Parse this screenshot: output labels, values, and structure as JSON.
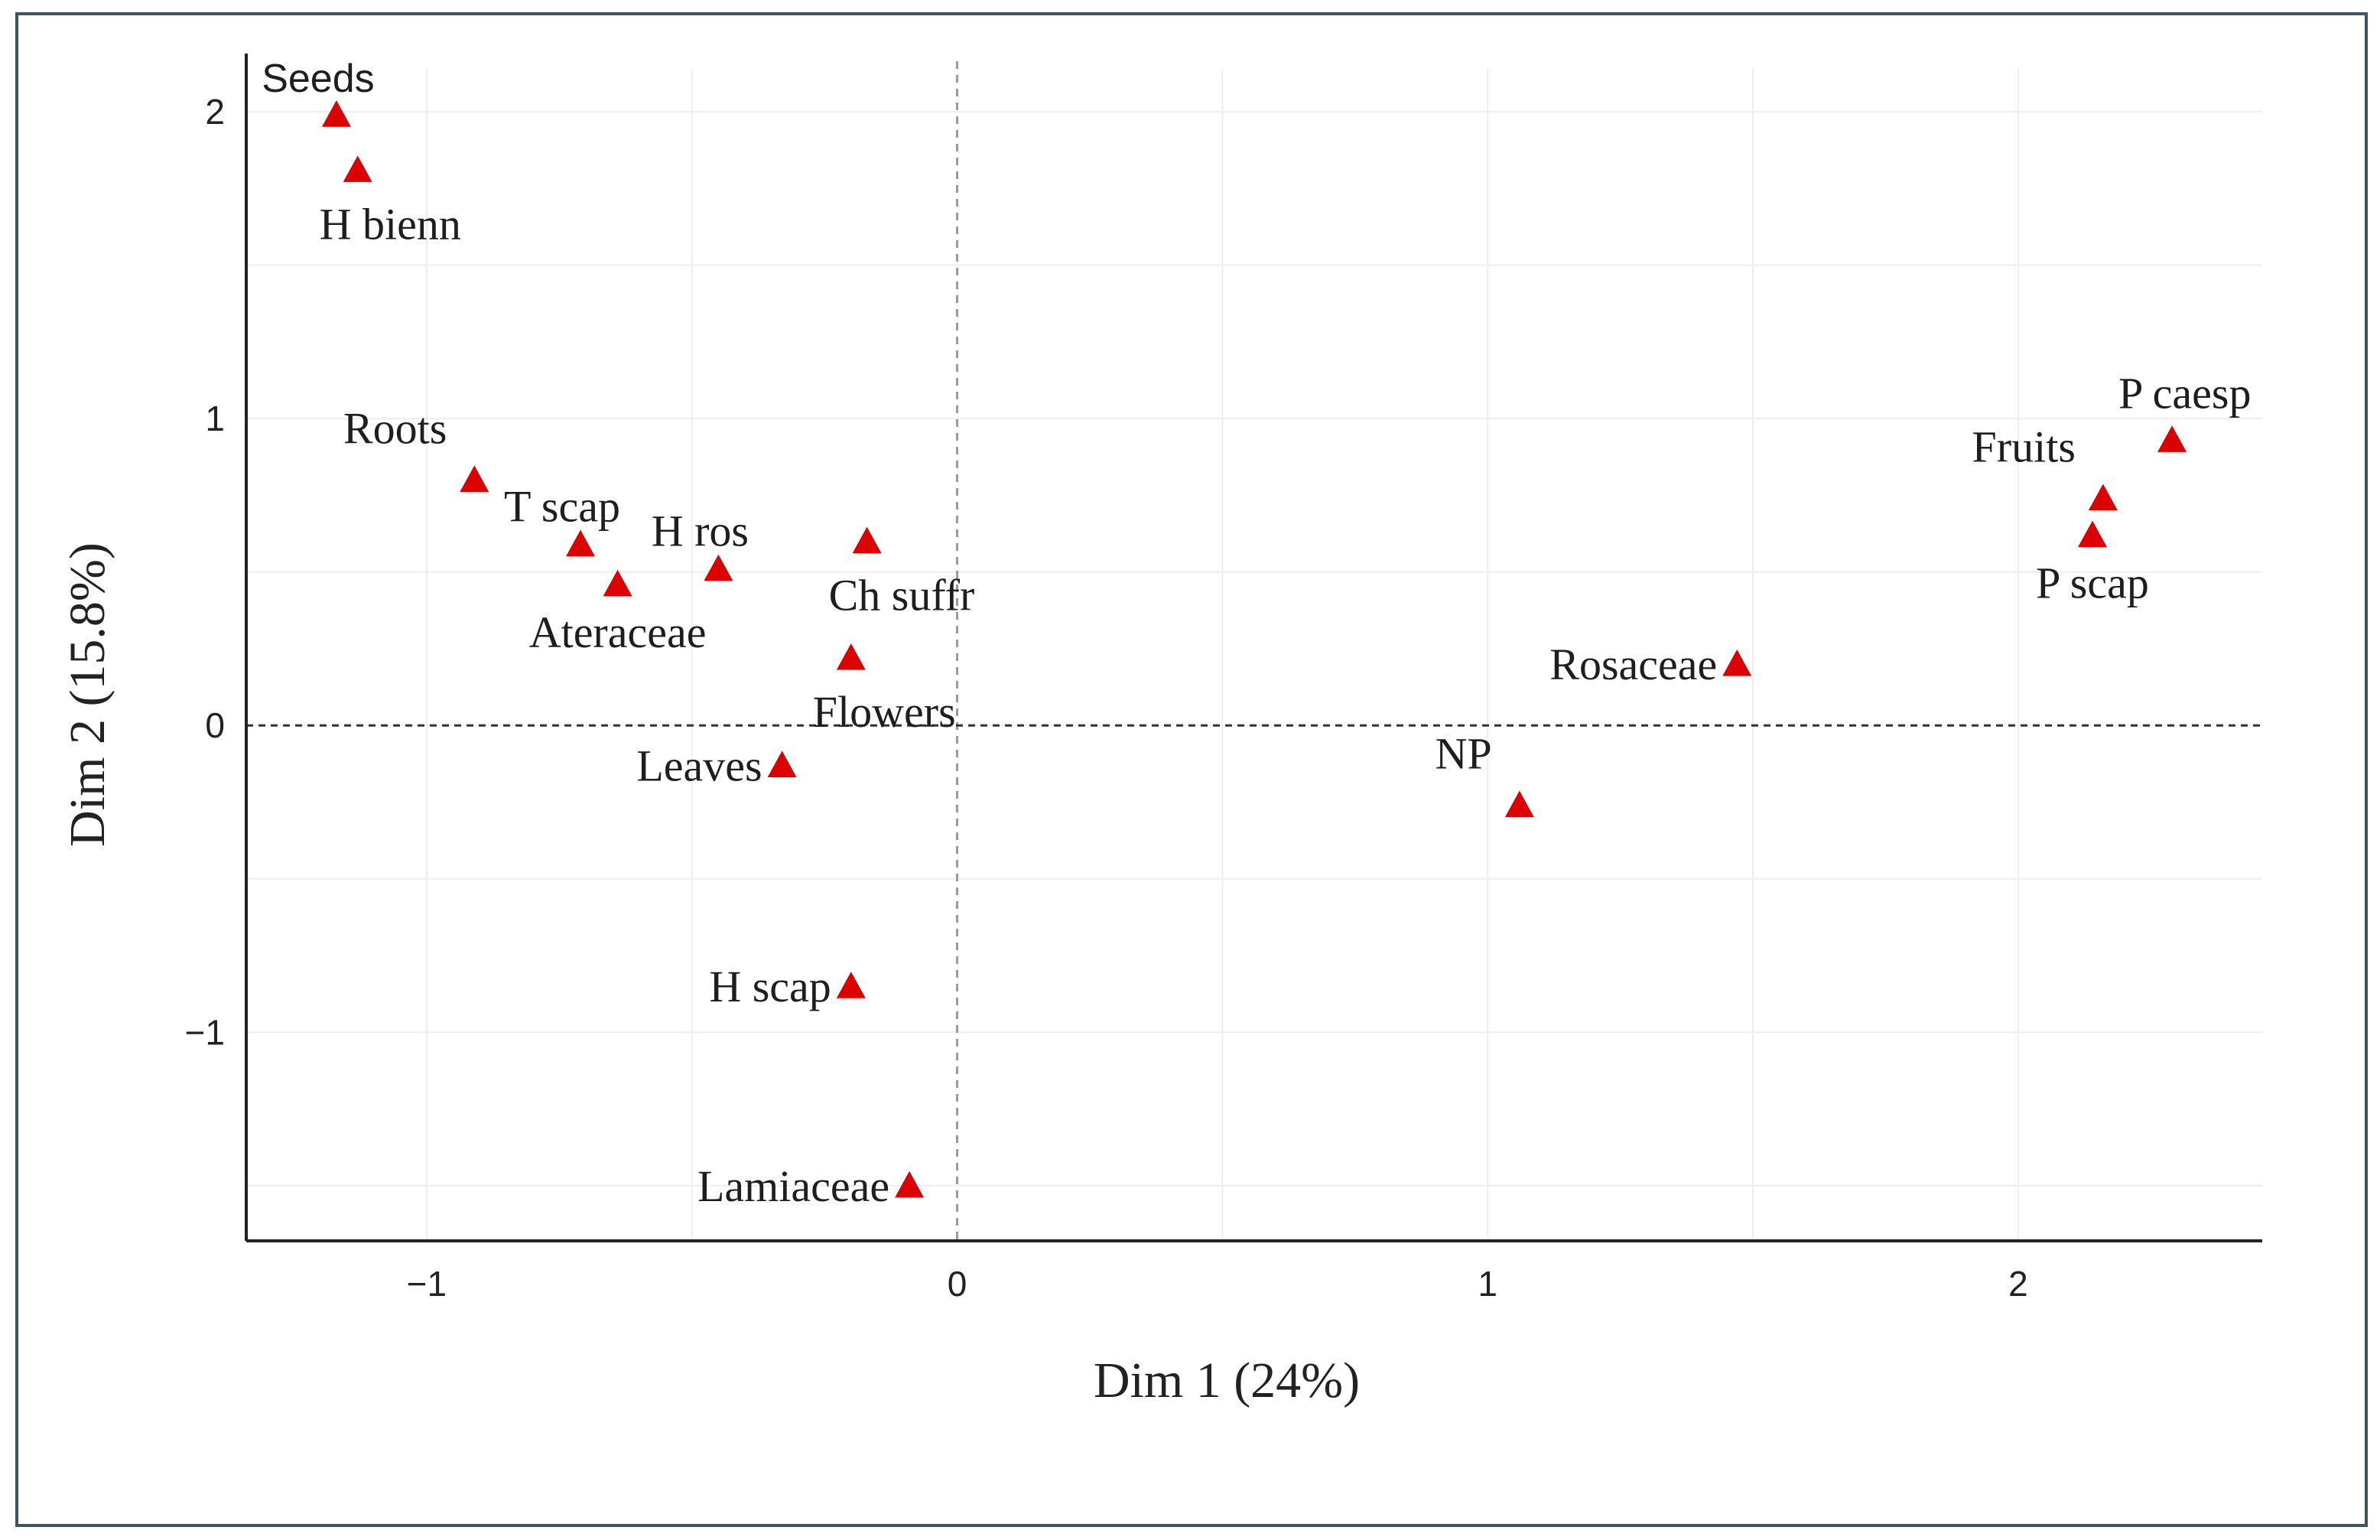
{
  "chart_data": {
    "type": "scatter",
    "title": "",
    "xlabel": "Dim 1 (24%)",
    "ylabel": "Dim 2 (15.8%)",
    "xlim": [
      -1.34,
      2.46
    ],
    "ylim": [
      -1.68,
      2.14
    ],
    "x_ticks": [
      -1,
      0,
      1,
      2
    ],
    "x_tick_labels": [
      "−1",
      "0",
      "1",
      "2"
    ],
    "y_ticks": [
      -1,
      0,
      1,
      2
    ],
    "y_tick_labels": [
      "−1",
      "0",
      "1",
      "2"
    ],
    "grid": true,
    "reference_lines": {
      "x": 0,
      "y": 0
    },
    "marker": {
      "shape": "triangle",
      "color": "#dd0000"
    },
    "points": [
      {
        "label": "Seeds",
        "x": -1.17,
        "y": 1.99,
        "label_pos": "above"
      },
      {
        "label": "H bienn",
        "x": -1.13,
        "y": 1.81,
        "label_pos": "below-right"
      },
      {
        "label": "Roots",
        "x": -0.91,
        "y": 0.8,
        "label_pos": "above-left"
      },
      {
        "label": "T scap",
        "x": -0.71,
        "y": 0.59,
        "label_pos": "above"
      },
      {
        "label": "Ateraceae",
        "x": -0.64,
        "y": 0.46,
        "label_pos": "below"
      },
      {
        "label": "H ros",
        "x": -0.45,
        "y": 0.51,
        "label_pos": "above"
      },
      {
        "label": "Ch suffr",
        "x": -0.17,
        "y": 0.6,
        "label_pos": "below-right"
      },
      {
        "label": "Flowers",
        "x": -0.2,
        "y": 0.22,
        "label_pos": "below-right"
      },
      {
        "label": "Leaves",
        "x": -0.33,
        "y": -0.13,
        "label_pos": "left"
      },
      {
        "label": "H scap",
        "x": -0.2,
        "y": -0.85,
        "label_pos": "left"
      },
      {
        "label": "Lamiaceae",
        "x": -0.09,
        "y": -1.5,
        "label_pos": "left"
      },
      {
        "label": "Rosaceae",
        "x": 1.47,
        "y": 0.2,
        "label_pos": "left"
      },
      {
        "label": "NP",
        "x": 1.06,
        "y": -0.26,
        "label_pos": "above-left"
      },
      {
        "label": "P caesp",
        "x": 2.29,
        "y": 0.93,
        "label_pos": "above-right"
      },
      {
        "label": "Fruits",
        "x": 2.16,
        "y": 0.74,
        "label_pos": "above-left"
      },
      {
        "label": "P scap",
        "x": 2.14,
        "y": 0.62,
        "label_pos": "below"
      }
    ]
  }
}
